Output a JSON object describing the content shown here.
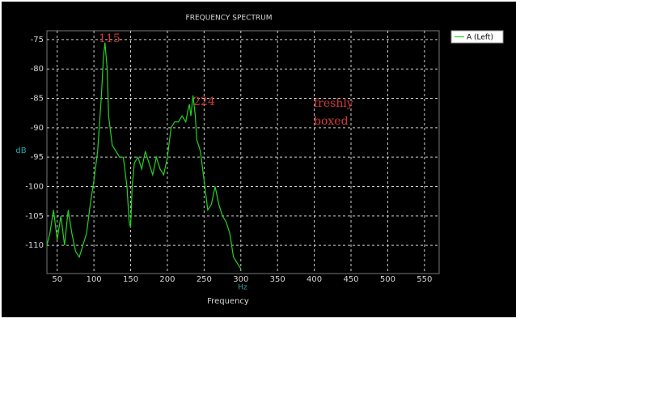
{
  "chart_data": {
    "type": "line",
    "title": "FREQUENCY SPECTRUM",
    "x_label": "Frequency",
    "x_unit": "Hz",
    "y_label": "dB",
    "xlim": [
      36,
      570
    ],
    "xticks": [
      50,
      100,
      150,
      200,
      250,
      300,
      350,
      400,
      450,
      500,
      550
    ],
    "ylim": [
      -114.8,
      -73.5
    ],
    "yticks": [
      -75,
      -80,
      -85,
      -90,
      -95,
      -100,
      -105,
      -110
    ],
    "grid": true,
    "legend": "top-right",
    "series": [
      {
        "name": "A (Left)",
        "color": "#22d422",
        "x": [
          36,
          40,
          45,
          50,
          55,
          60,
          65,
          70,
          75,
          80,
          85,
          90,
          95,
          100,
          105,
          110,
          113,
          115,
          118,
          120,
          125,
          130,
          135,
          140,
          145,
          148,
          150,
          152,
          155,
          160,
          165,
          170,
          175,
          180,
          185,
          190,
          195,
          200,
          205,
          210,
          215,
          220,
          225,
          228,
          230,
          232,
          235,
          238,
          240,
          245,
          250,
          255,
          260,
          265,
          270,
          275,
          280,
          285,
          290,
          295,
          300
        ],
        "values": [
          -110,
          -108,
          -104,
          -109,
          -105,
          -110,
          -104,
          -108,
          -111,
          -112,
          -110,
          -108,
          -103,
          -99,
          -94,
          -85,
          -78,
          -75.5,
          -80,
          -88,
          -93,
          -94,
          -95,
          -95,
          -100,
          -106,
          -107,
          -100,
          -96,
          -95,
          -97,
          -94,
          -96,
          -98,
          -95,
          -97,
          -98,
          -95,
          -90,
          -89,
          -89,
          -88,
          -89,
          -87,
          -86,
          -88,
          -84.5,
          -88,
          -92,
          -94,
          -99,
          -104,
          -103,
          -100,
          -103,
          -105,
          -106,
          -108,
          -112,
          -113,
          -114
        ]
      }
    ],
    "annotations": [
      "115",
      "224",
      "freshly",
      "boxed"
    ]
  }
}
